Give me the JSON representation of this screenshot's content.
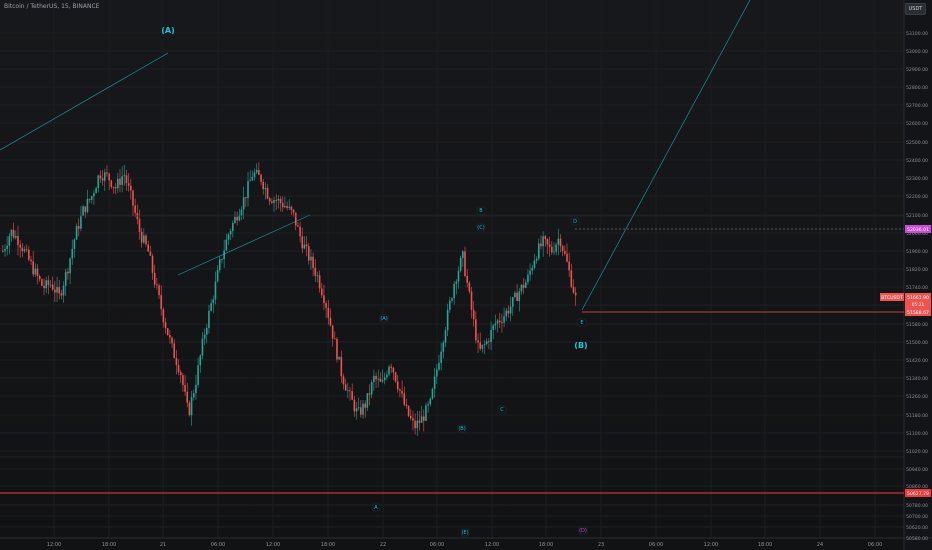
{
  "header": {
    "title": "Bitcoin / TetherUS, 15, BINANCE",
    "currency": "USDT"
  },
  "colors": {
    "up": "#26a69a",
    "down": "#ef5350",
    "wave": "#22c4d6",
    "support": "#ef3b3b",
    "magenta": "#c94bd8"
  },
  "chart_data": {
    "type": "candlestick",
    "y_ticks": [
      "53100.00",
      "53000.00",
      "52900.00",
      "52800.00",
      "52700.00",
      "52600.00",
      "52500.00",
      "52400.00",
      "52300.00",
      "52200.00",
      "52100.00",
      "52000.00",
      "51900.00",
      "51820.00",
      "51740.00",
      "51660.00",
      "51580.00",
      "51500.00",
      "51420.00",
      "51340.00",
      "51260.00",
      "51180.00",
      "51100.00",
      "51020.00",
      "50940.00",
      "50860.00",
      "50780.00",
      "50700.00",
      "50620.00",
      "50580.00",
      "50500.00",
      "50429.00"
    ],
    "x_ticks": [
      "12:00",
      "18:00",
      "21",
      "06:00",
      "12:00",
      "18:00",
      "22",
      "06:00",
      "12:00",
      "18:00",
      "23",
      "06:00",
      "12:00",
      "18:00",
      "24",
      "06:00"
    ],
    "price_labels": [
      {
        "text": "52036.01",
        "color": "#c94bd8"
      },
      {
        "text": "BTCUSDT",
        "color": "#ef5350"
      },
      {
        "text": "51661.90",
        "color": "#ef5350"
      },
      {
        "text": "05:21",
        "color": "#ef5350"
      },
      {
        "text": "51588.67",
        "color": "#ef5350"
      },
      {
        "text": "50627.79",
        "color": "#ef3b3b"
      }
    ],
    "wave_labels": [
      "(A)",
      "(B)",
      "A",
      "B",
      "C",
      "D",
      "E",
      "(A)",
      "(B)",
      "(C)",
      "(D)",
      "(E)"
    ],
    "candle_anchor_prices": [
      51900,
      52010,
      51960,
      51870,
      51780,
      51700,
      51720,
      51650,
      51800,
      51990,
      52130,
      52200,
      52330,
      52310,
      52250,
      52330,
      52180,
      52000,
      51900,
      51700,
      51520,
      51360,
      51240,
      51000,
      51200,
      51450,
      51640,
      51850,
      52000,
      52100,
      52200,
      52330,
      52300,
      52200,
      52180,
      52150,
      52100,
      51960,
      51860,
      51760,
      51620,
      51420,
      51220,
      51100,
      51000,
      51060,
      51200,
      51160,
      51300,
      51160,
      51020,
      50930,
      50980,
      51060,
      51300,
      51520,
      51740,
      51870,
      51600,
      51340,
      51400,
      51500,
      51540,
      51600,
      51680,
      51740,
      51880,
      51950,
      51900,
      51980,
      51820,
      51640
    ]
  }
}
